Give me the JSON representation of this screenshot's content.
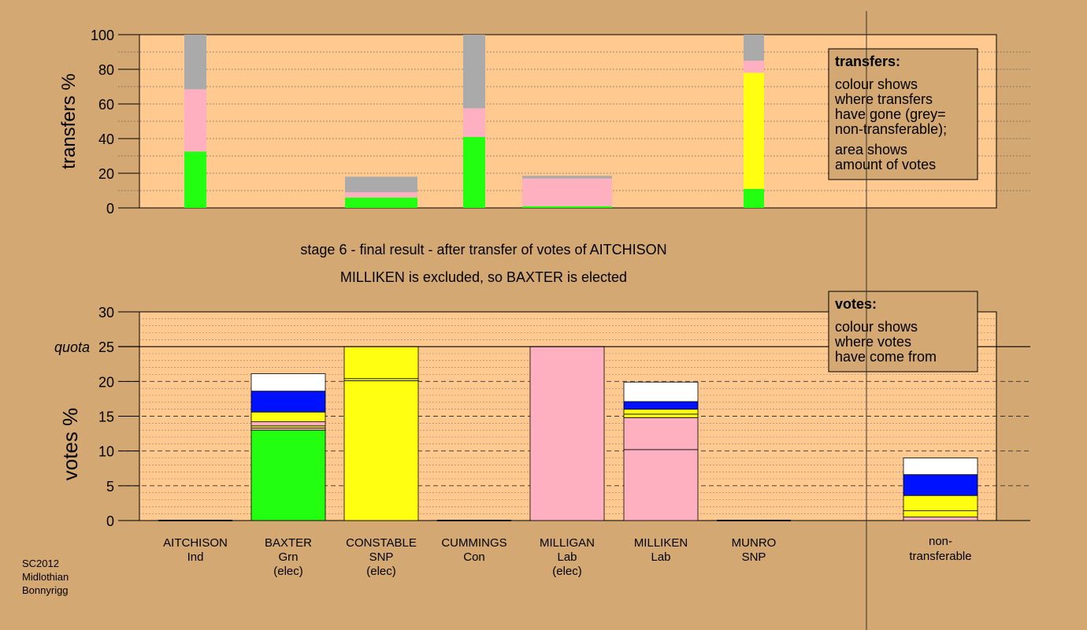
{
  "colors": {
    "background": "#d4a872",
    "plot_bg": "#ffc98f",
    "Grn": "#22ff11",
    "Lab": "#ffb0c0",
    "SNP": "#ffff11",
    "Con": "#0011ff",
    "Ind": "#ffffff",
    "nontransferable": "#aaaaaa"
  },
  "headline": {
    "stage": "stage 6 - final result - after transfer of votes of AITCHISON",
    "result": "MILLIKEN is excluded, so BAXTER is elected"
  },
  "footer": {
    "line1": "SC2012",
    "line2": "Midlothian",
    "line3": "Bonnyrigg"
  },
  "chart_data": [
    {
      "type": "bar",
      "ylabel": "transfers %",
      "ylim": [
        0,
        100
      ],
      "yticks": [
        0,
        20,
        40,
        60,
        80,
        100
      ],
      "note": {
        "title": "transfers:",
        "lines_a": [
          "colour shows",
          "where transfers",
          "have gone (grey=",
          "non-transferable);"
        ],
        "lines_b": [
          "area shows",
          "amount of votes"
        ]
      },
      "bars": [
        {
          "candidate": "AITCHISON",
          "segments": [
            {
              "party": "Grn",
              "value": 32.5
            },
            {
              "party": "Lab",
              "value": 36
            },
            {
              "party": "nontransferable",
              "value": 31.5
            }
          ]
        },
        {
          "candidate": "CONSTABLE",
          "segments": [
            {
              "party": "Grn",
              "value": 6
            },
            {
              "party": "Lab",
              "value": 3
            },
            {
              "party": "nontransferable",
              "value": 9
            }
          ]
        },
        {
          "candidate": "CUMMINGS",
          "segments": [
            {
              "party": "Grn",
              "value": 41
            },
            {
              "party": "Lab",
              "value": 16.5
            },
            {
              "party": "nontransferable",
              "value": 42.5
            }
          ]
        },
        {
          "candidate": "MILLIGAN",
          "segments": [
            {
              "party": "Grn",
              "value": 1
            },
            {
              "party": "Lab",
              "value": 16
            },
            {
              "party": "nontransferable",
              "value": 1.5
            }
          ]
        },
        {
          "candidate": "MUNRO",
          "segments": [
            {
              "party": "Grn",
              "value": 11
            },
            {
              "party": "SNP",
              "value": 67
            },
            {
              "party": "Lab",
              "value": 7
            },
            {
              "party": "nontransferable",
              "value": 15
            }
          ]
        }
      ]
    },
    {
      "type": "bar",
      "ylabel": "votes %",
      "ylim": [
        0,
        30
      ],
      "yticks": [
        0,
        5,
        10,
        15,
        20,
        25,
        30
      ],
      "quota": 25,
      "quota_label": "quota",
      "note": {
        "title": "votes:",
        "lines_a": [
          "colour shows",
          "where votes",
          "have come from"
        ]
      },
      "candidates": [
        {
          "name": "AITCHISON",
          "party": "Ind",
          "status": "",
          "segments": []
        },
        {
          "name": "BAXTER",
          "party": "Grn",
          "status": "(elec)",
          "segments": [
            {
              "party": "Grn",
              "value": 13
            },
            {
              "party": "Lab",
              "value": 0.3
            },
            {
              "party": "SNP",
              "value": 0.3
            },
            {
              "party": "Lab",
              "value": 0.6
            },
            {
              "party": "SNP",
              "value": 1.4
            },
            {
              "party": "Con",
              "value": 3
            },
            {
              "party": "Ind",
              "value": 2.5
            }
          ]
        },
        {
          "name": "CONSTABLE",
          "party": "SNP",
          "status": "(elec)",
          "segments": [
            {
              "party": "SNP",
              "value": 20.1
            },
            {
              "party": "SNP",
              "value": 0.3
            },
            {
              "party": "SNP",
              "value": 4.6
            }
          ]
        },
        {
          "name": "CUMMINGS",
          "party": "Con",
          "status": "",
          "segments": []
        },
        {
          "name": "MILLIGAN",
          "party": "Lab",
          "status": "(elec)",
          "segments": [
            {
              "party": "Lab",
              "value": 25
            }
          ]
        },
        {
          "name": "MILLIKEN",
          "party": "Lab",
          "status": "",
          "segments": [
            {
              "party": "Lab",
              "value": 10.2
            },
            {
              "party": "Lab",
              "value": 4.6
            },
            {
              "party": "SNP",
              "value": 0.5
            },
            {
              "party": "SNP",
              "value": 0.7
            },
            {
              "party": "Con",
              "value": 1.1
            },
            {
              "party": "Ind",
              "value": 2.8
            }
          ]
        },
        {
          "name": "MUNRO",
          "party": "SNP",
          "status": "",
          "segments": []
        }
      ],
      "nontransferable": {
        "label_line1": "non-",
        "label_line2": "transferable",
        "segments": [
          {
            "party": "Lab",
            "value": 0.5
          },
          {
            "party": "SNP",
            "value": 0.9
          },
          {
            "party": "SNP",
            "value": 2.2
          },
          {
            "party": "Con",
            "value": 3
          },
          {
            "party": "Ind",
            "value": 2.4
          }
        ]
      }
    }
  ]
}
